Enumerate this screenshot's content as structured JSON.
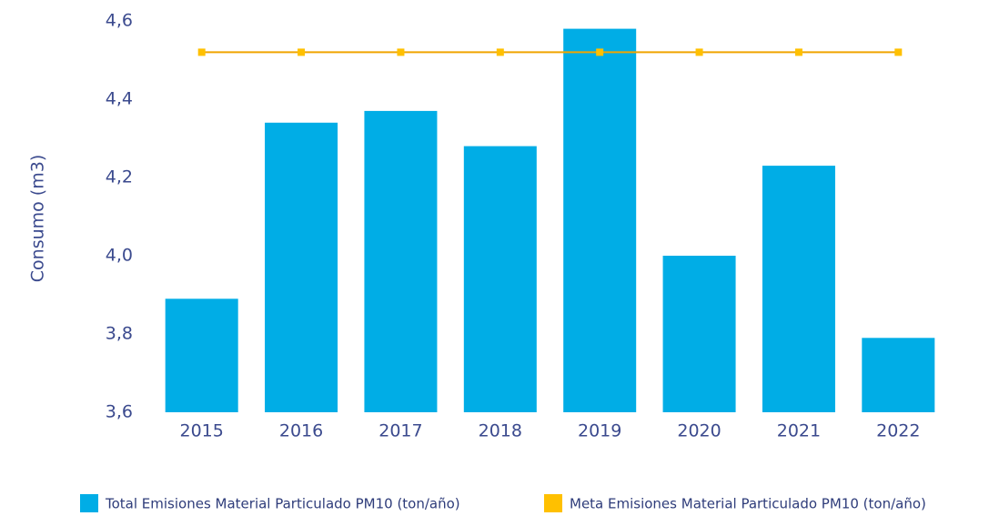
{
  "chart_data": {
    "type": "bar",
    "y_label": "Consumo (m3)",
    "categories": [
      "2015",
      "2016",
      "2017",
      "2018",
      "2019",
      "2020",
      "2021",
      "2022"
    ],
    "series": [
      {
        "name": "Total Emisiones Material Particulado PM10 (ton/año)",
        "type": "bar",
        "color": "#00ade6",
        "values": [
          3.89,
          4.34,
          4.37,
          4.28,
          4.58,
          4.0,
          4.23,
          3.79
        ]
      },
      {
        "name": "Meta Emisiones Material Particulado PM10 (ton/año)",
        "type": "line",
        "color": "#ffc000",
        "values": [
          4.52,
          4.52,
          4.52,
          4.52,
          4.52,
          4.52,
          4.52,
          4.52
        ]
      }
    ],
    "ylim": [
      3.6,
      4.6
    ],
    "yticks": [
      {
        "value": 3.6,
        "label": "3,6"
      },
      {
        "value": 3.8,
        "label": "3,8"
      },
      {
        "value": 4.0,
        "label": "4,0"
      },
      {
        "value": 4.2,
        "label": "4,2"
      },
      {
        "value": 4.4,
        "label": "4,4"
      },
      {
        "value": 4.6,
        "label": "4,6"
      }
    ],
    "grid": false,
    "legend": "bottom"
  }
}
